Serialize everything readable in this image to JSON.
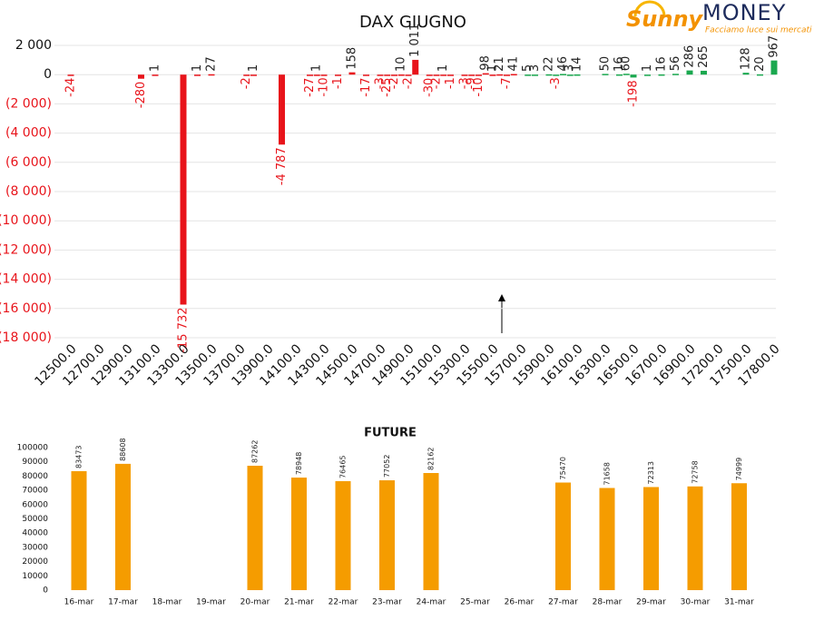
{
  "logo": {
    "brand": "Sunny",
    "name": "MONEY",
    "tagline": "Facciamo luce sui mercati"
  },
  "chart_data": [
    {
      "type": "bar",
      "title": "DAX GIUGNO",
      "categories": [
        "12500.0",
        null,
        null,
        null,
        "12700.0",
        null,
        null,
        null,
        "12900.0",
        null,
        null,
        null,
        "13100.0",
        null,
        null,
        null,
        "13300.0",
        null,
        null,
        null,
        "13500.0",
        null,
        null,
        null,
        "13700.0",
        null,
        null,
        null,
        "13900.0",
        null,
        null,
        null,
        "14100.0",
        null,
        null,
        null,
        "14300.0",
        null,
        null,
        null,
        "14500.0",
        null,
        null,
        null,
        "14700.0",
        null,
        null,
        null,
        "14900.0",
        null,
        null,
        null,
        "15100.0",
        null,
        null,
        null,
        "15300.0",
        null,
        null,
        null,
        "15500.0",
        null,
        null,
        null,
        "15700.0",
        null,
        null,
        null,
        "15900.0",
        null,
        null,
        null,
        "16100.0",
        null,
        null,
        null,
        "16300.0",
        null,
        null,
        null,
        "16500.0",
        null,
        null,
        null,
        "16700.0",
        null,
        null,
        null,
        "16900.0",
        null,
        null,
        null,
        "17200.0",
        null,
        null,
        null,
        "17500.0",
        null,
        null,
        null,
        "17800.0"
      ],
      "values": [
        -24,
        null,
        null,
        null,
        null,
        null,
        null,
        null,
        null,
        null,
        -280,
        null,
        1,
        null,
        null,
        null,
        -15732,
        null,
        1,
        null,
        27,
        null,
        null,
        null,
        null,
        -2,
        1,
        null,
        null,
        null,
        -4787,
        null,
        null,
        null,
        -27,
        1,
        -10,
        null,
        -1,
        null,
        158,
        null,
        -17,
        null,
        -3,
        -25,
        -2,
        10,
        -2,
        1011,
        null,
        -30,
        -2,
        1,
        -1,
        null,
        -3,
        -9,
        -10,
        98,
        1,
        21,
        -7,
        41,
        null,
        5,
        3,
        null,
        22,
        -3,
        46,
        3,
        14,
        null,
        null,
        null,
        50,
        null,
        16,
        60,
        -198,
        null,
        1,
        null,
        16,
        null,
        56,
        null,
        286,
        null,
        265,
        null,
        null,
        null,
        null,
        null,
        128,
        null,
        20,
        null,
        967
      ],
      "value_labels": [
        "-24",
        null,
        null,
        null,
        null,
        null,
        null,
        null,
        null,
        null,
        "-280",
        null,
        "1",
        null,
        null,
        null,
        "-15 732",
        null,
        "1",
        null,
        "27",
        null,
        null,
        null,
        null,
        "-2",
        "1",
        null,
        null,
        null,
        "-4 787",
        null,
        null,
        null,
        "-27",
        "1",
        "-10",
        null,
        "-1",
        null,
        "158",
        null,
        "-17",
        null,
        "-3",
        "-25",
        "-2",
        "10",
        "-2",
        "1 011",
        null,
        "-30",
        "-2",
        "1",
        "-1",
        null,
        "-3",
        "-9",
        "-10",
        "98",
        "1",
        "21",
        "-7",
        "41",
        null,
        "5",
        "3",
        null,
        "22",
        "-3",
        "46",
        "3",
        "14",
        null,
        null,
        null,
        "50",
        null,
        "16",
        "60",
        "-198",
        null,
        "1",
        null,
        "16",
        null,
        "56",
        null,
        "286",
        null,
        "265",
        null,
        null,
        null,
        null,
        null,
        "128",
        null,
        "20",
        null,
        "967"
      ],
      "bar_colors": [
        "#e8141b",
        null,
        null,
        null,
        null,
        null,
        null,
        null,
        null,
        null,
        "#e8141b",
        null,
        "#e8141b",
        null,
        null,
        null,
        "#e8141b",
        null,
        "#e8141b",
        null,
        "#e8141b",
        null,
        null,
        null,
        null,
        "#e8141b",
        "#e8141b",
        null,
        null,
        null,
        "#e8141b",
        null,
        null,
        null,
        "#e8141b",
        "#e8141b",
        "#e8141b",
        null,
        "#e8141b",
        null,
        "#e8141b",
        null,
        "#e8141b",
        null,
        "#e8141b",
        "#e8141b",
        "#e8141b",
        "#e8141b",
        "#e8141b",
        "#e8141b",
        null,
        "#e8141b",
        "#e8141b",
        "#e8141b",
        "#e8141b",
        null,
        "#e8141b",
        "#e8141b",
        "#e8141b",
        "#e8141b",
        "#e8141b",
        "#e8141b",
        "#e8141b",
        "#e8141b",
        null,
        "#1aa84f",
        "#1aa84f",
        null,
        "#1aa84f",
        "#1aa84f",
        "#1aa84f",
        "#1aa84f",
        "#1aa84f",
        null,
        null,
        null,
        "#1aa84f",
        null,
        "#1aa84f",
        "#1aa84f",
        "#1aa84f",
        null,
        "#1aa84f",
        null,
        "#1aa84f",
        null,
        "#1aa84f",
        null,
        "#1aa84f",
        null,
        "#1aa84f",
        null,
        null,
        null,
        null,
        null,
        "#1aa84f",
        null,
        "#1aa84f",
        null,
        "#1aa84f"
      ],
      "ylim": [
        -18000,
        2000
      ],
      "yticks": [
        {
          "value": 2000,
          "label": "2 000"
        },
        0,
        {
          "value": -2000,
          "label": "(2 000)"
        },
        {
          "value": -4000,
          "label": "(4 000)"
        },
        {
          "value": -6000,
          "label": "(6 000)"
        },
        {
          "value": -8000,
          "label": "(8 000)"
        },
        {
          "value": -10000,
          "label": "(10 000)"
        },
        {
          "value": -12000,
          "label": "(12 000)"
        },
        {
          "value": -14000,
          "label": "(14 000)"
        },
        {
          "value": -16000,
          "label": "(16 000)"
        },
        {
          "value": -18000,
          "label": "(18 000)"
        }
      ],
      "grid": true
    },
    {
      "type": "bar",
      "title": "FUTURE",
      "categories": [
        "16-mar",
        "17-mar",
        "18-mar",
        "19-mar",
        "20-mar",
        "21-mar",
        "22-mar",
        "23-mar",
        "24-mar",
        "25-mar",
        "26-mar",
        "27-mar",
        "28-mar",
        "29-mar",
        "30-mar",
        "31-mar"
      ],
      "values": [
        83473,
        88608,
        null,
        null,
        87262,
        78948,
        76465,
        77052,
        82162,
        null,
        null,
        75470,
        71658,
        72313,
        72758,
        74999
      ],
      "color": "#f59c00",
      "ylim": [
        0,
        100000
      ],
      "yticks": [
        0,
        10000,
        20000,
        30000,
        40000,
        50000,
        60000,
        70000,
        80000,
        90000,
        100000
      ],
      "grid": false
    }
  ]
}
